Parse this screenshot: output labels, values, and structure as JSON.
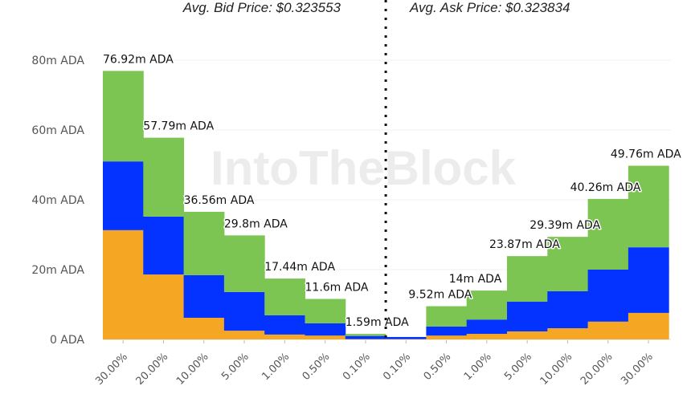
{
  "header": {
    "bid_label": "Avg. Bid Price: $0.323553",
    "ask_label": "Avg. Ask Price: $0.323834"
  },
  "watermark": "IntoTheBlock",
  "chart_data": {
    "type": "bar",
    "stacked": true,
    "categories": [
      "30.00%",
      "20.00%",
      "10.00%",
      "5.00%",
      "1.00%",
      "0.50%",
      "0.10%",
      "0.10%",
      "0.50%",
      "1.00%",
      "5.00%",
      "10.00%",
      "20.00%",
      "30.00%"
    ],
    "sides": [
      "bid",
      "bid",
      "bid",
      "bid",
      "bid",
      "bid",
      "bid",
      "ask",
      "ask",
      "ask",
      "ask",
      "ask",
      "ask",
      "ask"
    ],
    "series": [
      {
        "color": "#f5a623",
        "values": [
          31.3,
          18.6,
          6.2,
          2.5,
          1.4,
          1.1,
          0.1,
          0.1,
          1.1,
          1.6,
          2.3,
          3.2,
          5.1,
          7.6
        ]
      },
      {
        "color": "#0433ff",
        "values": [
          19.7,
          16.6,
          12.2,
          11.1,
          5.5,
          3.5,
          0.9,
          0.6,
          2.6,
          4.1,
          8.5,
          10.6,
          14.9,
          18.8
        ]
      },
      {
        "color": "#7dc552",
        "values": [
          25.92,
          22.59,
          18.16,
          16.2,
          10.54,
          7.0,
          0.59,
          0.0,
          5.82,
          8.3,
          13.07,
          15.59,
          20.26,
          23.36
        ]
      }
    ],
    "totals": [
      76.92,
      57.79,
      36.56,
      29.8,
      17.44,
      11.6,
      1.59,
      null,
      9.52,
      14,
      23.87,
      29.39,
      40.26,
      49.76
    ],
    "total_labels": [
      "76.92m ADA",
      "57.79m ADA",
      "36.56m ADA",
      "29.8m ADA",
      "17.44m ADA",
      "11.6m ADA",
      "1.59m ADA",
      "",
      "9.52m ADA",
      "14m ADA",
      "23.87m ADA",
      "29.39m ADA",
      "40.26m ADA",
      "49.76m ADA"
    ],
    "yticks": [
      "0 ADA",
      "20m ADA",
      "40m ADA",
      "60m ADA",
      "80m ADA"
    ],
    "ytick_values": [
      0,
      20,
      40,
      60,
      80
    ],
    "ylim": [
      0,
      80
    ],
    "grid": true,
    "divider": "dotted line between bid and ask sides"
  }
}
